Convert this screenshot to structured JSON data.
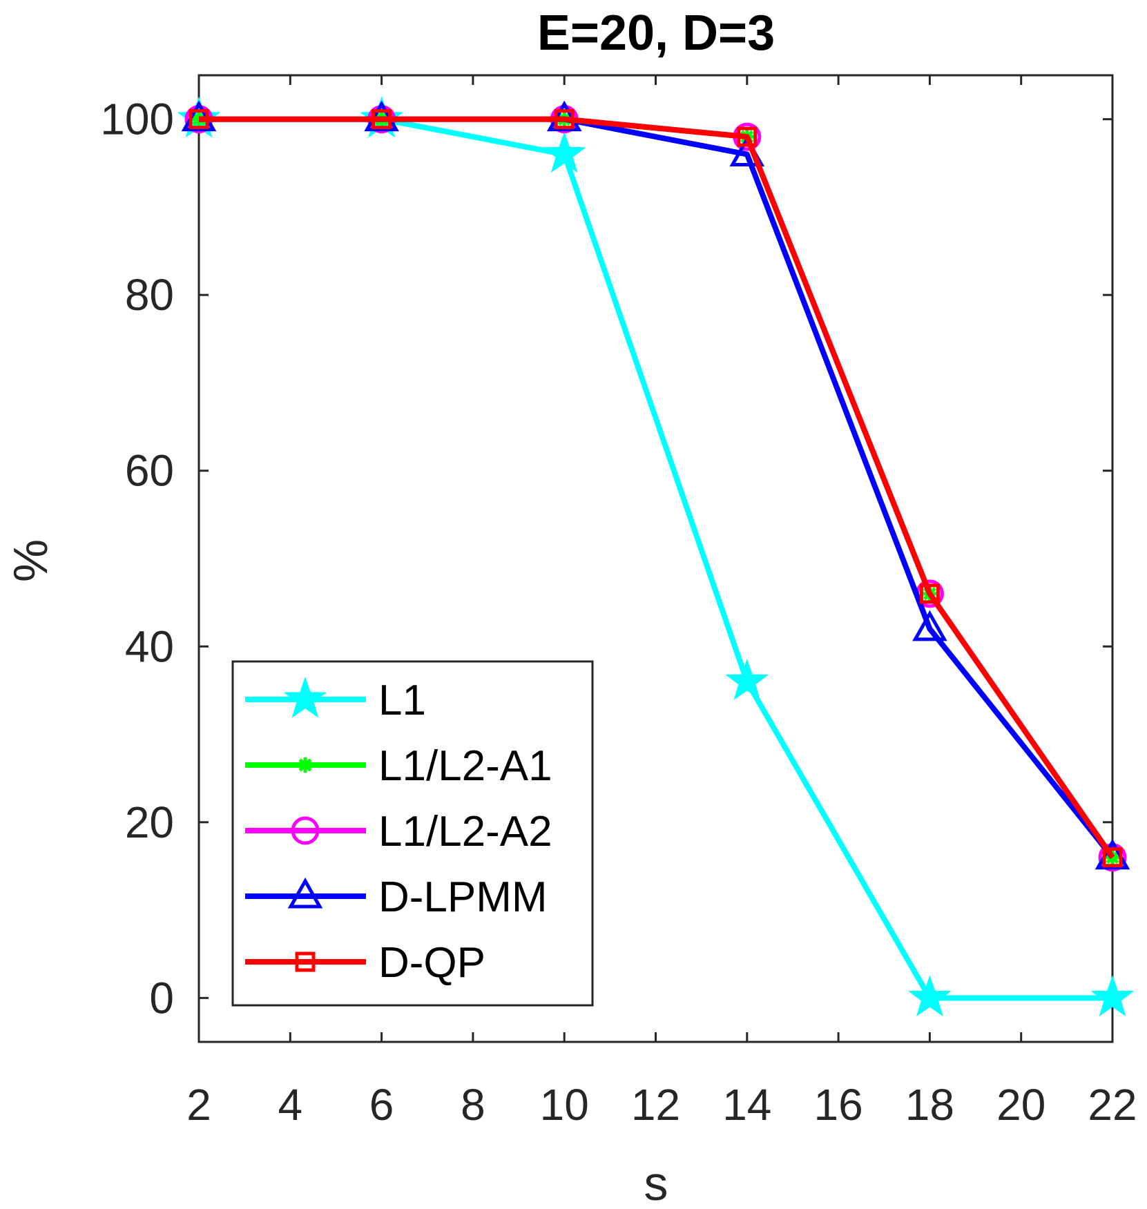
{
  "chart_data": {
    "type": "line",
    "title": "E=20, D=3",
    "xlabel": "s",
    "ylabel": "%",
    "xlim": [
      2,
      22
    ],
    "ylim": [
      -5,
      105
    ],
    "xticks": [
      2,
      4,
      6,
      8,
      10,
      12,
      14,
      16,
      18,
      20,
      22
    ],
    "yticks": [
      0,
      20,
      40,
      60,
      80,
      100
    ],
    "grid": false,
    "legend": {
      "placement": "bottom-left"
    },
    "x": [
      2,
      6,
      10,
      14,
      18,
      22
    ],
    "series": [
      {
        "name": "L1",
        "color": "#00ffff",
        "marker": "star",
        "values": [
          100,
          100,
          96,
          36,
          0,
          0
        ]
      },
      {
        "name": "L1/L2-A1",
        "color": "#00ff00",
        "marker": "asterisk",
        "values": [
          100,
          100,
          100,
          98,
          46,
          16
        ]
      },
      {
        "name": "L1/L2-A2",
        "color": "#ff00ff",
        "marker": "circle",
        "values": [
          100,
          100,
          100,
          98,
          46,
          16
        ]
      },
      {
        "name": "D-LPMM",
        "color": "#0000ff",
        "marker": "triangle",
        "values": [
          100,
          100,
          100,
          96,
          42,
          16
        ]
      },
      {
        "name": "D-QP",
        "color": "#ff0000",
        "marker": "square",
        "values": [
          100,
          100,
          100,
          98,
          46,
          16
        ]
      }
    ]
  }
}
